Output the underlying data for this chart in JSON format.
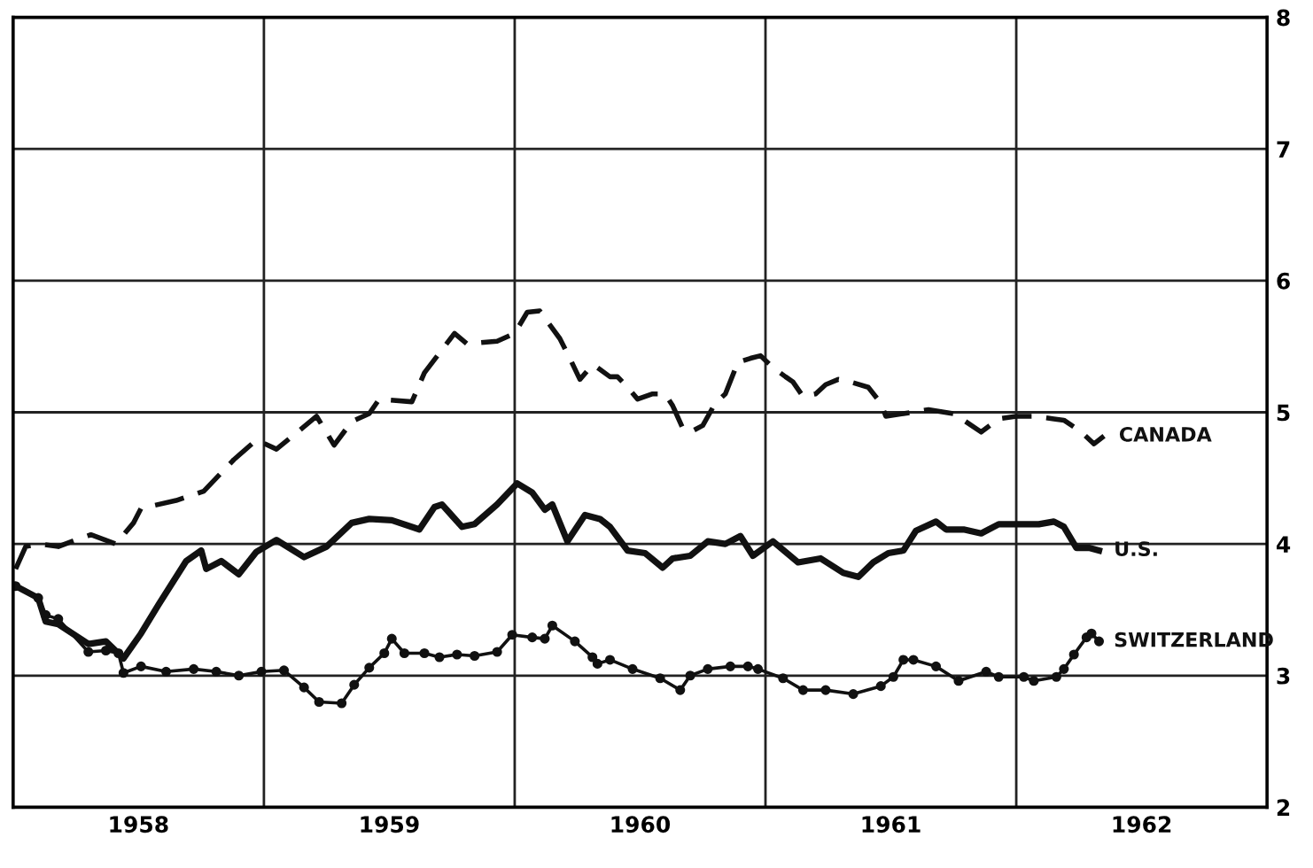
{
  "chart_data": {
    "type": "line",
    "xlim": [
      1958,
      1963
    ],
    "ylim": [
      2,
      8
    ],
    "yticks": [
      2,
      3,
      4,
      5,
      6,
      7,
      8
    ],
    "xticks": [
      {
        "value": 1958.5,
        "label": "1958"
      },
      {
        "value": 1959,
        "label": null
      },
      {
        "value": 1959.5,
        "label": "1959"
      },
      {
        "value": 1960,
        "label": null
      },
      {
        "value": 1960.5,
        "label": "1960"
      },
      {
        "value": 1961,
        "label": null
      },
      {
        "value": 1961.5,
        "label": "1961"
      },
      {
        "value": 1962,
        "label": null
      },
      {
        "value": 1962.5,
        "label": "1962"
      }
    ],
    "grid": true,
    "legend": false,
    "series": [
      {
        "name": "CANADA",
        "color": "#111111",
        "line_style": "dashed",
        "marker": "none",
        "x": [
          1958.01,
          1958.05,
          1958.11,
          1958.18,
          1958.25,
          1958.31,
          1958.41,
          1958.48,
          1958.51,
          1958.65,
          1958.76,
          1958.88,
          1958.97,
          1959.05,
          1959.14,
          1959.21,
          1959.28,
          1959.35,
          1959.42,
          1959.46,
          1959.59,
          1959.64,
          1959.7,
          1959.76,
          1959.81,
          1959.93,
          1960.0,
          1960.05,
          1960.1,
          1960.13,
          1960.18,
          1960.22,
          1960.26,
          1960.31,
          1960.33,
          1960.38,
          1960.41,
          1960.45,
          1960.49,
          1960.55,
          1960.6,
          1960.63,
          1960.67,
          1960.7,
          1960.75,
          1960.8,
          1960.84,
          1960.89,
          1960.94,
          1960.98,
          1961.03,
          1961.08,
          1961.11,
          1961.15,
          1961.2,
          1961.24,
          1961.29,
          1961.34,
          1961.41,
          1961.46,
          1961.48,
          1961.55,
          1961.65,
          1961.75,
          1961.79,
          1961.86,
          1961.93,
          1962.0,
          1962.07,
          1962.15,
          1962.19,
          1962.26,
          1962.31,
          1962.35
        ],
        "values": [
          3.81,
          3.98,
          4.0,
          3.98,
          4.03,
          4.07,
          4.0,
          4.16,
          4.27,
          4.33,
          4.4,
          4.64,
          4.79,
          4.72,
          4.86,
          4.97,
          4.75,
          4.93,
          4.99,
          5.1,
          5.08,
          5.3,
          5.45,
          5.6,
          5.52,
          5.54,
          5.6,
          5.76,
          5.77,
          5.69,
          5.56,
          5.41,
          5.25,
          5.36,
          5.34,
          5.27,
          5.27,
          5.19,
          5.1,
          5.14,
          5.14,
          5.05,
          4.88,
          4.85,
          4.9,
          5.07,
          5.14,
          5.38,
          5.41,
          5.43,
          5.34,
          5.27,
          5.23,
          5.12,
          5.14,
          5.21,
          5.25,
          5.23,
          5.19,
          5.07,
          4.97,
          4.99,
          5.02,
          4.99,
          4.94,
          4.85,
          4.95,
          4.97,
          4.97,
          4.95,
          4.94,
          4.85,
          4.76,
          4.82
        ]
      },
      {
        "name": "U.S.",
        "color": "#111111",
        "line_style": "solid",
        "marker": "none",
        "x": [
          1958.01,
          1958.1,
          1958.13,
          1958.18,
          1958.3,
          1958.37,
          1958.44,
          1958.51,
          1958.58,
          1958.69,
          1958.75,
          1958.77,
          1958.83,
          1958.9,
          1958.97,
          1959.05,
          1959.16,
          1959.25,
          1959.35,
          1959.42,
          1959.51,
          1959.62,
          1959.68,
          1959.71,
          1959.79,
          1959.84,
          1959.93,
          1960.01,
          1960.07,
          1960.12,
          1960.15,
          1960.21,
          1960.28,
          1960.34,
          1960.38,
          1960.45,
          1960.52,
          1960.59,
          1960.63,
          1960.7,
          1960.77,
          1960.84,
          1960.9,
          1960.95,
          1961.03,
          1961.13,
          1961.22,
          1961.31,
          1961.37,
          1961.43,
          1961.49,
          1961.55,
          1961.6,
          1961.68,
          1961.72,
          1961.79,
          1961.86,
          1961.93,
          1962.0,
          1962.09,
          1962.15,
          1962.19,
          1962.24,
          1962.29,
          1962.33
        ],
        "values": [
          3.68,
          3.59,
          3.41,
          3.39,
          3.24,
          3.26,
          3.13,
          3.32,
          3.54,
          3.87,
          3.95,
          3.81,
          3.87,
          3.77,
          3.94,
          4.03,
          3.9,
          3.98,
          4.16,
          4.19,
          4.18,
          4.11,
          4.28,
          4.3,
          4.13,
          4.15,
          4.3,
          4.46,
          4.39,
          4.26,
          4.3,
          4.02,
          4.22,
          4.19,
          4.13,
          3.95,
          3.93,
          3.82,
          3.89,
          3.91,
          4.02,
          4.0,
          4.06,
          3.91,
          4.02,
          3.86,
          3.89,
          3.78,
          3.75,
          3.86,
          3.93,
          3.95,
          4.1,
          4.17,
          4.11,
          4.11,
          4.08,
          4.15,
          4.15,
          4.15,
          4.17,
          4.13,
          3.97,
          3.97,
          3.95
        ]
      },
      {
        "name": "SWITZERLAND",
        "color": "#111111",
        "line_style": "solid",
        "marker": "circle",
        "x": [
          1958.01,
          1958.1,
          1958.13,
          1958.18,
          1958.3,
          1958.37,
          1958.42,
          1958.44,
          1958.51,
          1958.61,
          1958.72,
          1958.81,
          1958.9,
          1958.99,
          1959.08,
          1959.16,
          1959.22,
          1959.31,
          1959.36,
          1959.42,
          1959.48,
          1959.51,
          1959.56,
          1959.64,
          1959.7,
          1959.77,
          1959.84,
          1959.93,
          1959.99,
          1960.07,
          1960.12,
          1960.15,
          1960.24,
          1960.31,
          1960.33,
          1960.38,
          1960.47,
          1960.58,
          1960.66,
          1960.7,
          1960.77,
          1960.86,
          1960.93,
          1960.97,
          1961.07,
          1961.15,
          1961.24,
          1961.35,
          1961.46,
          1961.51,
          1961.55,
          1961.59,
          1961.68,
          1961.77,
          1961.88,
          1961.93,
          1962.03,
          1962.07,
          1962.16,
          1962.19,
          1962.23,
          1962.28,
          1962.3,
          1962.33
        ],
        "values": [
          3.68,
          3.59,
          3.46,
          3.43,
          3.18,
          3.19,
          3.17,
          3.02,
          3.07,
          3.03,
          3.05,
          3.03,
          3.0,
          3.03,
          3.04,
          2.91,
          2.8,
          2.79,
          2.93,
          3.06,
          3.17,
          3.28,
          3.17,
          3.17,
          3.14,
          3.16,
          3.15,
          3.18,
          3.31,
          3.29,
          3.28,
          3.38,
          3.26,
          3.14,
          3.09,
          3.12,
          3.05,
          2.98,
          2.89,
          3.0,
          3.05,
          3.07,
          3.07,
          3.05,
          2.98,
          2.89,
          2.89,
          2.86,
          2.92,
          2.99,
          3.12,
          3.12,
          3.07,
          2.96,
          3.03,
          2.99,
          2.99,
          2.96,
          2.99,
          3.05,
          3.16,
          3.29,
          3.32,
          3.26
        ]
      }
    ]
  }
}
